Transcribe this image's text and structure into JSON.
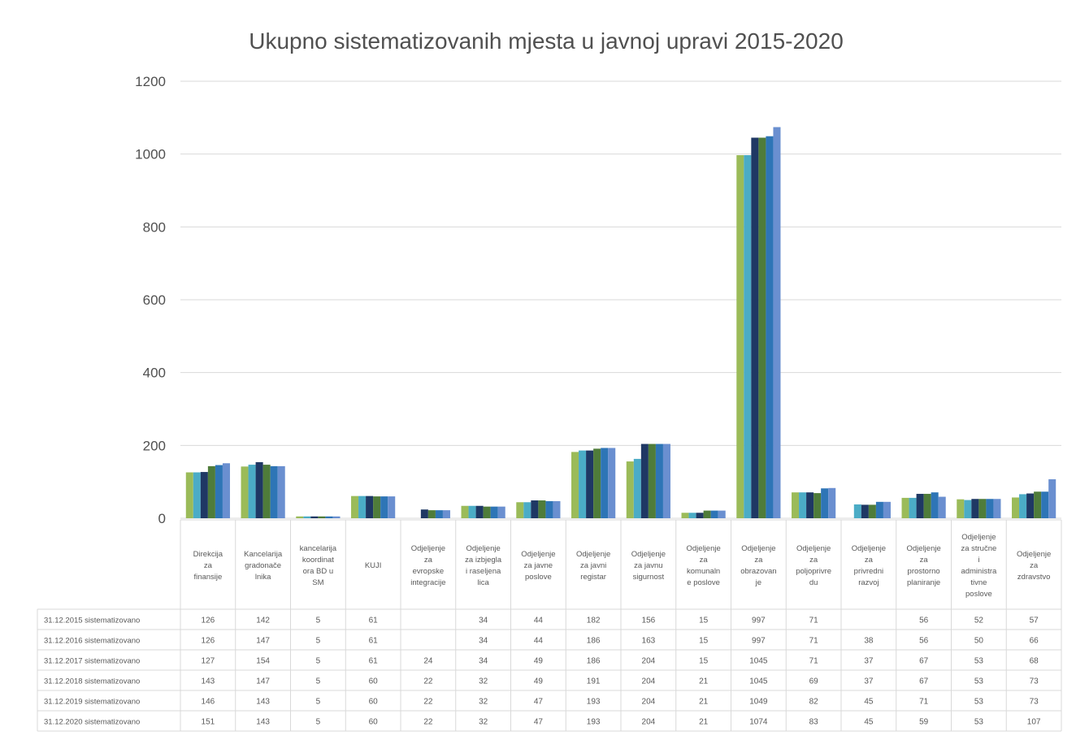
{
  "chart_data": {
    "type": "bar",
    "title": "Ukupno sistematizovanih mjesta u javnoj upravi 2015-2020",
    "ylim": [
      0,
      1200
    ],
    "yticks": [
      "0",
      "200",
      "400",
      "600",
      "800",
      "1000",
      "1200"
    ],
    "grid": true,
    "categories": [
      "Direkcija za finansije",
      "Kancelarija gradonačelnika",
      "kancelarija koordinatora BD u SM",
      "KUJI",
      "Odjeljenje za evropske integracije",
      "Odjeljenje za izbjegla i raseljena lica",
      "Odjeljenje za javne poslove",
      "Odjeljenje za javni registar",
      "Odjeljenje za javnu sigurnost",
      "Odjeljenje za komunalne poslove",
      "Odjeljenje za obrazovanje",
      "Odjeljenje za poljoprivredu",
      "Odjeljenje za privredni razvoj",
      "Odjeljenje za prostorno planiranje",
      "Odjeljenje za stručne i administrativne poslove",
      "Odjeljenje za zdravstvo"
    ],
    "category_lines": [
      [
        "Direkcija",
        "za",
        "finansije"
      ],
      [
        "Kancelarija",
        "gradonače",
        "lnika"
      ],
      [
        "kancelarija",
        "koordinat",
        "ora BD u",
        "SM"
      ],
      [
        "KUJI"
      ],
      [
        "Odjeljenje",
        "za",
        "evropske",
        "integracije"
      ],
      [
        "Odjeljenje",
        "za izbjegla",
        "i raseljena",
        "lica"
      ],
      [
        "Odjeljenje",
        "za javne",
        "poslove"
      ],
      [
        "Odjeljenje",
        "za javni",
        "registar"
      ],
      [
        "Odjeljenje",
        "za javnu",
        "sigurnost"
      ],
      [
        "Odjeljenje",
        "za",
        "komunaln",
        "e poslove"
      ],
      [
        "Odjeljenje",
        "za",
        "obrazovan",
        "je"
      ],
      [
        "Odjeljenje",
        "za",
        "poljoprivre",
        "du"
      ],
      [
        "Odjeljenje",
        "za",
        "privredni",
        "razvoj"
      ],
      [
        "Odjeljenje",
        "za",
        "prostorno",
        "planiranje"
      ],
      [
        "Odjeljenje",
        "za stručne",
        "i",
        "administra",
        "tivne",
        "poslove"
      ],
      [
        "Odjeljenje",
        "za",
        "zdravstvo"
      ]
    ],
    "series": [
      {
        "name": "31.12.2015 sistematizovano",
        "color": "#9BBB59",
        "values": [
          126,
          142,
          5,
          61,
          null,
          34,
          44,
          182,
          156,
          15,
          997,
          71,
          null,
          56,
          52,
          57
        ]
      },
      {
        "name": "31.12.2016 sistematizovano",
        "color": "#4BACC6",
        "values": [
          126,
          147,
          5,
          61,
          null,
          34,
          44,
          186,
          163,
          15,
          997,
          71,
          38,
          56,
          50,
          66
        ]
      },
      {
        "name": "31.12.2017 sistematizovano",
        "color": "#1F3864",
        "values": [
          127,
          154,
          5,
          61,
          24,
          34,
          49,
          186,
          204,
          15,
          1045,
          71,
          37,
          67,
          53,
          68
        ]
      },
      {
        "name": "31.12.2018 sistematizovano",
        "color": "#4F7C3A",
        "values": [
          143,
          147,
          5,
          60,
          22,
          32,
          49,
          191,
          204,
          21,
          1045,
          69,
          37,
          67,
          53,
          73
        ]
      },
      {
        "name": "31.12.2019 sistematizovano",
        "color": "#2E75B6",
        "values": [
          146,
          143,
          5,
          60,
          22,
          32,
          47,
          193,
          204,
          21,
          1049,
          82,
          45,
          71,
          53,
          73
        ]
      },
      {
        "name": "31.12.2020 sistematizovano",
        "color": "#6A8FD0",
        "values": [
          151,
          143,
          5,
          60,
          22,
          32,
          47,
          193,
          204,
          21,
          1074,
          83,
          45,
          59,
          53,
          107
        ]
      }
    ]
  }
}
